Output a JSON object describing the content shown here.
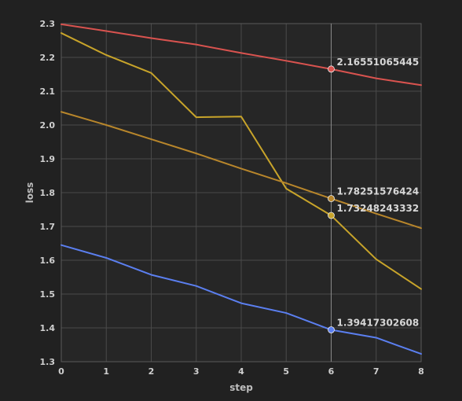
{
  "chart_data": {
    "type": "line",
    "xlabel": "step",
    "ylabel": "loss",
    "xlim": [
      0,
      8
    ],
    "ylim": [
      1.3,
      2.3
    ],
    "x": [
      0,
      1,
      2,
      3,
      4,
      5,
      6,
      7,
      8
    ],
    "x_ticks": [
      "0",
      "1",
      "2",
      "3",
      "4",
      "5",
      "6",
      "7",
      "8"
    ],
    "y_ticks": [
      "1.3",
      "1.4",
      "1.5",
      "1.6",
      "1.7",
      "1.8",
      "1.9",
      "2.0",
      "2.1",
      "2.2",
      "2.3"
    ],
    "grid": true,
    "hover_x": 6,
    "series": [
      {
        "color": "#d9534f",
        "values": [
          2.298,
          2.278,
          2.257,
          2.238,
          2.213,
          2.19,
          2.16551065445,
          2.138,
          2.118
        ]
      },
      {
        "color": "#c8a42a",
        "values": [
          2.272,
          2.207,
          2.154,
          2.023,
          2.025,
          1.812,
          1.73248243332,
          1.603,
          1.515
        ]
      },
      {
        "color": "#b8862b",
        "values": [
          2.039,
          2.0,
          1.958,
          1.916,
          1.871,
          1.828,
          1.78251576424,
          1.738,
          1.695
        ]
      },
      {
        "color": "#5b7ff0",
        "values": [
          1.645,
          1.607,
          1.557,
          1.524,
          1.473,
          1.444,
          1.39417302608,
          1.371,
          1.323
        ]
      }
    ],
    "hover_labels": [
      {
        "series": 0,
        "text": "2.16551065445"
      },
      {
        "series": 2,
        "text": "1.78251576424"
      },
      {
        "series": 1,
        "text": "1.73248243332"
      },
      {
        "series": 3,
        "text": "1.39417302608"
      }
    ]
  }
}
